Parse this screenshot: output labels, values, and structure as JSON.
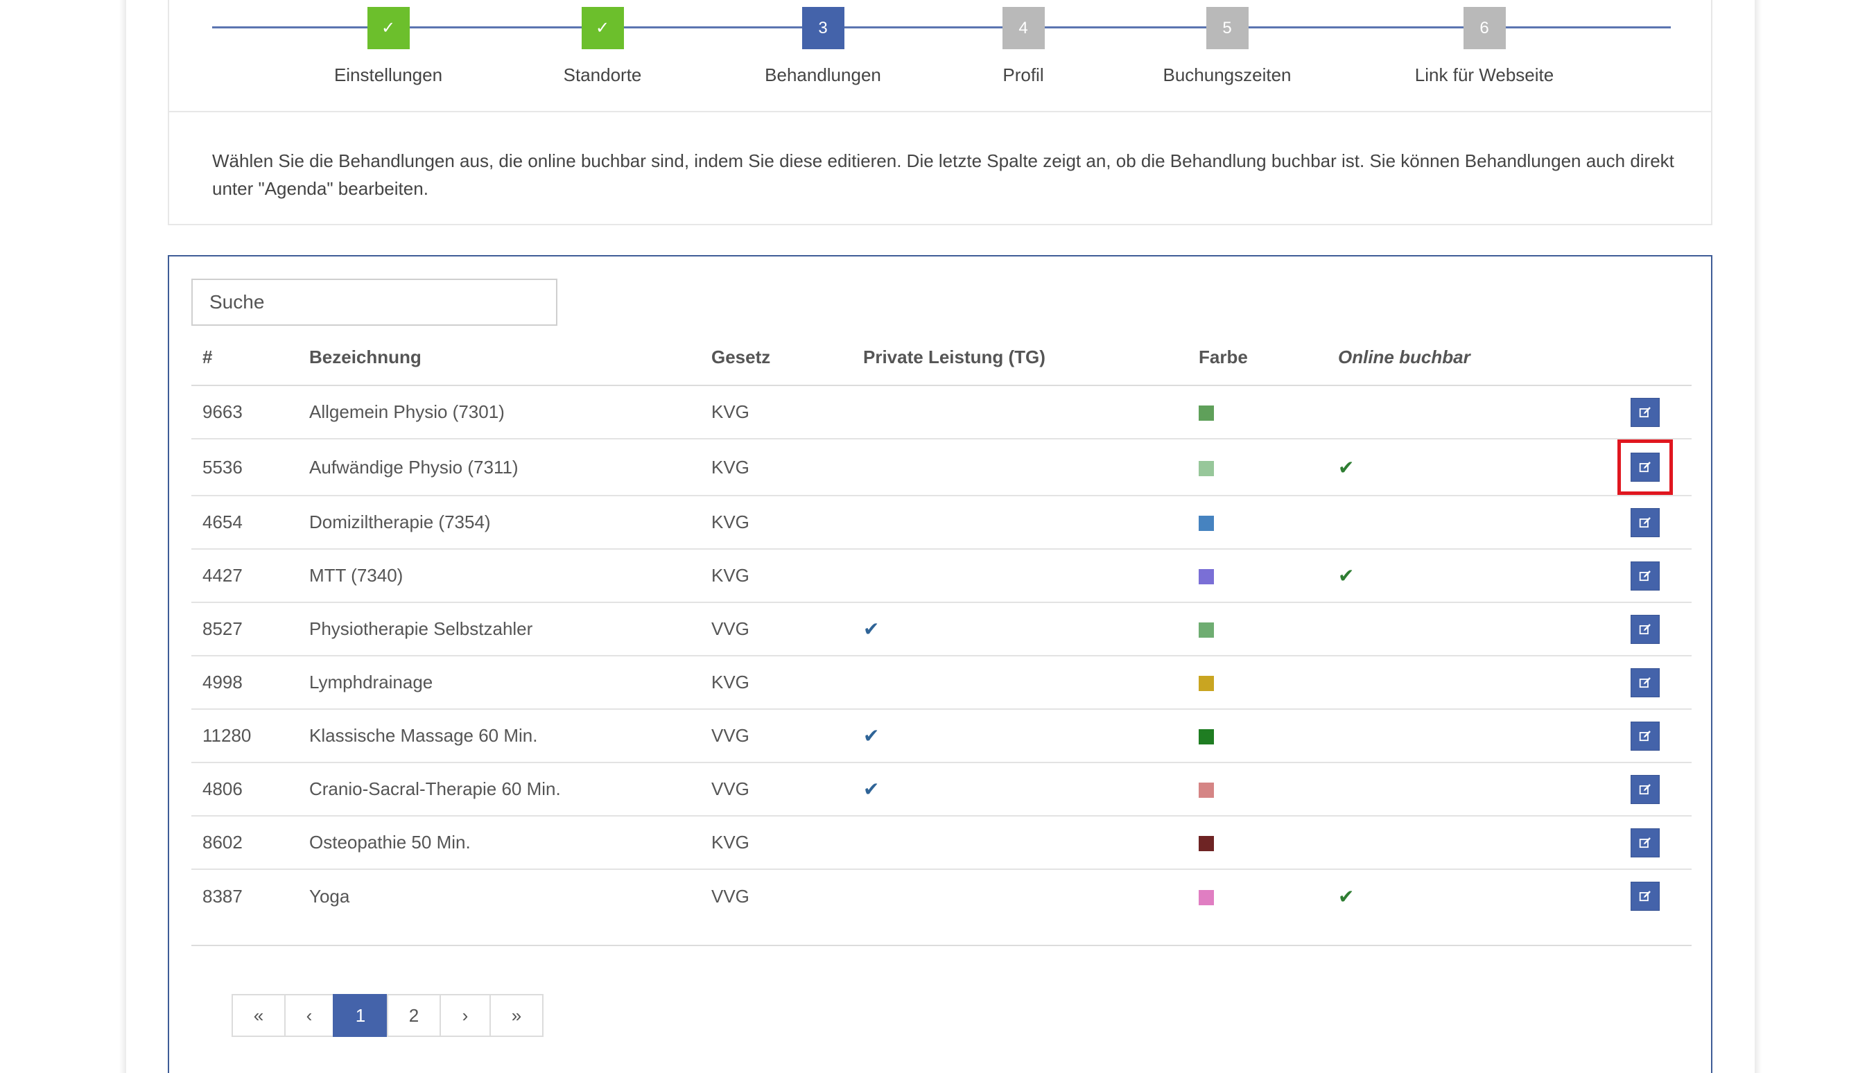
{
  "wizard": {
    "steps": [
      {
        "badge": "✓",
        "label": "Einstellungen",
        "state": "done"
      },
      {
        "badge": "✓",
        "label": "Standorte",
        "state": "done"
      },
      {
        "badge": "3",
        "label": "Behandlungen",
        "state": "active"
      },
      {
        "badge": "4",
        "label": "Profil",
        "state": "todo"
      },
      {
        "badge": "5",
        "label": "Buchungszeiten",
        "state": "todo"
      },
      {
        "badge": "6",
        "label": "Link für Webseite",
        "state": "todo"
      }
    ],
    "intro": "Wählen Sie die Behandlungen aus, die online buchbar sind, indem Sie diese editieren. Die letzte Spalte zeigt an, ob die Behandlung buchbar ist. Sie können Behandlungen auch direkt unter \"Agenda\" bearbeiten."
  },
  "search": {
    "placeholder": "Suche"
  },
  "table": {
    "headers": {
      "id": "#",
      "name": "Bezeichnung",
      "law": "Gesetz",
      "private": "Private Leistung (TG)",
      "color": "Farbe",
      "online": "Online buchbar"
    },
    "rows": [
      {
        "id": "9663",
        "name": "Allgemein Physio (7301)",
        "law": "KVG",
        "private": false,
        "color": "#5fa05a",
        "online": false
      },
      {
        "id": "5536",
        "name": "Aufwändige Physio (7311)",
        "law": "KVG",
        "private": false,
        "color": "#97c79a",
        "online": true
      },
      {
        "id": "4654",
        "name": "Domiziltherapie (7354)",
        "law": "KVG",
        "private": false,
        "color": "#4683c0",
        "online": false
      },
      {
        "id": "4427",
        "name": "MTT (7340)",
        "law": "KVG",
        "private": false,
        "color": "#7a6fd6",
        "online": true
      },
      {
        "id": "8527",
        "name": "Physiotherapie Selbstzahler",
        "law": "VVG",
        "private": true,
        "color": "#6fad72",
        "online": false
      },
      {
        "id": "4998",
        "name": "Lymphdrainage",
        "law": "KVG",
        "private": false,
        "color": "#c9a521",
        "online": false
      },
      {
        "id": "11280",
        "name": "Klassische Massage 60 Min.",
        "law": "VVG",
        "private": true,
        "color": "#1f7d22",
        "online": false
      },
      {
        "id": "4806",
        "name": "Cranio-Sacral-Therapie 60 Min.",
        "law": "VVG",
        "private": true,
        "color": "#d58585",
        "online": false
      },
      {
        "id": "8602",
        "name": "Osteopathie 50 Min.",
        "law": "KVG",
        "private": false,
        "color": "#6e2424",
        "online": false
      },
      {
        "id": "8387",
        "name": "Yoga",
        "law": "VVG",
        "private": false,
        "color": "#e07ec2",
        "online": true
      }
    ],
    "edit_icon": "edit-icon",
    "highlighted_row": 1
  },
  "pagination": {
    "first": "«",
    "prev": "‹",
    "pages": [
      "1",
      "2"
    ],
    "current": "1",
    "next": "›",
    "last": "»"
  },
  "colors": {
    "accent": "#4463aa",
    "done": "#6cbf2c",
    "todo": "#b9b9b9",
    "highlight": "#e0161f"
  }
}
